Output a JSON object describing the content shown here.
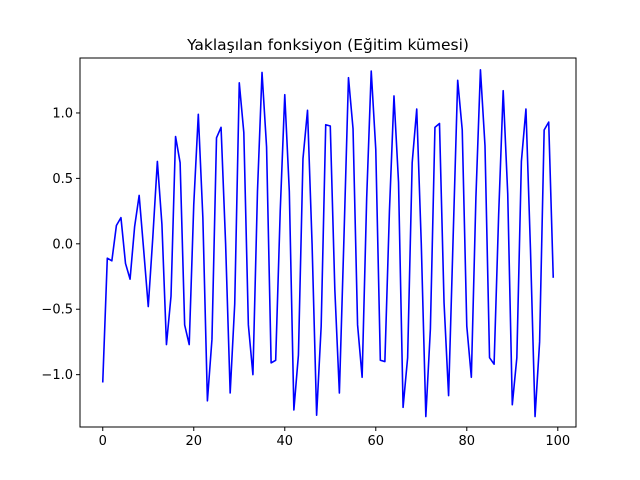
{
  "chart_data": {
    "type": "line",
    "title": "Yaklaşılan fonksiyon (Eğitim kümesi)",
    "xlabel": "",
    "ylabel": "",
    "xlim": [
      -5,
      104
    ],
    "ylim": [
      -1.4,
      1.42
    ],
    "x_ticks": [
      0,
      20,
      40,
      60,
      80,
      100
    ],
    "x_tick_labels": [
      "0",
      "20",
      "40",
      "60",
      "80",
      "100"
    ],
    "y_ticks": [
      -1.0,
      -0.5,
      0.0,
      0.5,
      1.0
    ],
    "y_tick_labels": [
      "−1.0",
      "−0.5",
      "0.0",
      "0.5",
      "1.0"
    ],
    "grid": false,
    "series": [
      {
        "color": "#0000ff",
        "x": [
          0,
          1,
          2,
          3,
          4,
          5,
          6,
          7,
          8,
          9,
          10,
          11,
          12,
          13,
          14,
          15,
          16,
          17,
          18,
          19,
          20,
          21,
          22,
          23,
          24,
          25,
          26,
          27,
          28,
          29,
          30,
          31,
          32,
          33,
          34,
          35,
          36,
          37,
          38,
          39,
          40,
          41,
          42,
          43,
          44,
          45,
          46,
          47,
          48,
          49,
          50,
          51,
          52,
          53,
          54,
          55,
          56,
          57,
          58,
          59,
          60,
          61,
          62,
          63,
          64,
          65,
          66,
          67,
          68,
          69,
          70,
          71,
          72,
          73,
          74,
          75,
          76,
          77,
          78,
          79,
          80,
          81,
          82,
          83,
          84,
          85,
          86,
          87,
          88,
          89,
          90,
          91,
          92,
          93,
          94,
          95,
          96,
          97,
          98,
          99
        ],
        "y": [
          -1.06,
          -0.11,
          -0.13,
          0.14,
          0.2,
          -0.15,
          -0.27,
          0.13,
          0.37,
          -0.05,
          -0.48,
          0.05,
          0.63,
          0.15,
          -0.77,
          -0.4,
          0.82,
          0.62,
          -0.62,
          -0.77,
          0.3,
          0.99,
          0.2,
          -1.2,
          -0.73,
          0.81,
          0.89,
          0.0,
          -1.14,
          -0.46,
          1.23,
          0.85,
          -0.62,
          -1.0,
          0.4,
          1.31,
          0.74,
          -0.91,
          -0.89,
          0.25,
          1.14,
          0.4,
          -1.27,
          -0.85,
          0.65,
          1.02,
          0.0,
          -1.31,
          -0.63,
          0.91,
          0.9,
          -0.35,
          -1.14,
          0.04,
          1.27,
          0.88,
          -0.62,
          -1.02,
          0.35,
          1.32,
          0.72,
          -0.89,
          -0.9,
          0.25,
          1.13,
          0.47,
          -1.25,
          -0.87,
          0.62,
          1.03,
          0.0,
          -1.32,
          -0.65,
          0.89,
          0.92,
          -0.45,
          -1.16,
          0.05,
          1.25,
          0.87,
          -0.63,
          -1.02,
          0.35,
          1.33,
          0.75,
          -0.87,
          -0.92,
          0.22,
          1.17,
          0.38,
          -1.23,
          -0.87,
          0.63,
          1.03,
          -0.05,
          -1.32,
          -0.75,
          0.87,
          0.93,
          -0.26
        ]
      }
    ]
  }
}
